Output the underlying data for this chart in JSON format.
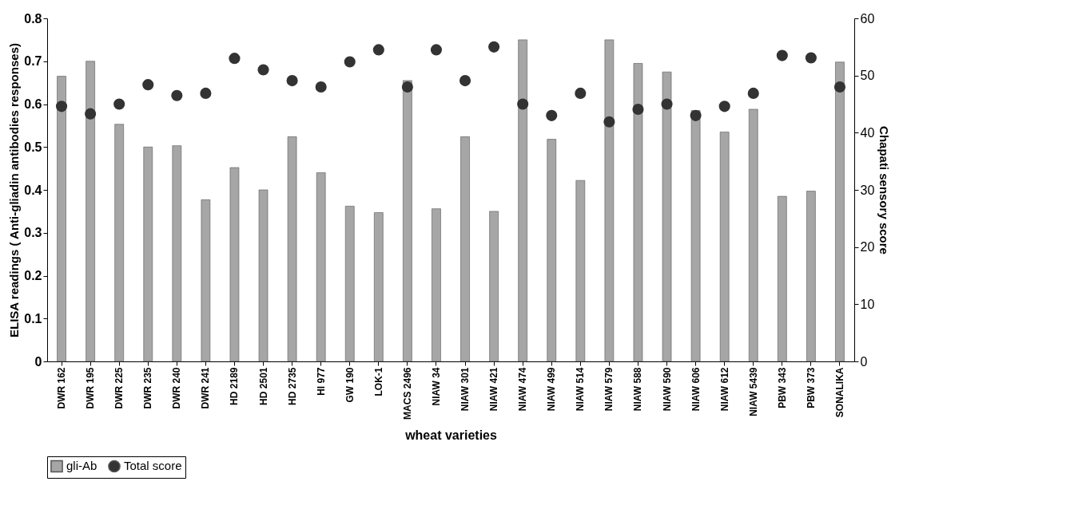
{
  "chart_data": {
    "type": "bar",
    "xlabel": "wheat varieties",
    "ylabel": "ELISA readings ( Anti-gliadin antibodies responses)",
    "y2label": "Chapati sensory score",
    "categories": [
      "DWR 162",
      "DWR 195",
      "DWR 225",
      "DWR 235",
      "DWR 240",
      "DWR 241",
      "HD 2189",
      "HD 2501",
      "HD 2735",
      "HI 977",
      "GW 190",
      "LOK-1",
      "MACS 2496",
      "NIAW 34",
      "NIAW 301",
      "NIAW 421",
      "NIAW 474",
      "NIAW 499",
      "NIAW 514",
      "NIAW 579",
      "NIAW 588",
      "NIAW 590",
      "NIAW 606",
      "NIAW 612",
      "NIAW 5439",
      "PBW 343",
      "PBW 373",
      "SONALIKA"
    ],
    "series": [
      {
        "name": "gli-Ab",
        "color": "#a6a6a6",
        "values": [
          0.665,
          0.7,
          0.553,
          0.5,
          0.503,
          0.377,
          0.452,
          0.4,
          0.524,
          0.44,
          0.362,
          0.347,
          0.655,
          0.356,
          0.524,
          0.35,
          0.75,
          0.518,
          0.422,
          0.75,
          0.695,
          0.675,
          0.585,
          0.535,
          0.588,
          0.385,
          0.397,
          0.698
        ]
      },
      {
        "name": "Total score",
        "type": "scatter",
        "axis": "y2",
        "color": "#333333",
        "marker": "circle",
        "values": [
          44.6,
          43.3,
          45,
          48.4,
          46.5,
          46.9,
          53,
          51,
          49.1,
          48,
          52.4,
          54.5,
          48,
          54.5,
          49.1,
          55,
          45,
          43,
          46.9,
          41.9,
          44.1,
          45,
          43,
          44.6,
          46.9,
          53.5,
          53.1,
          48
        ]
      }
    ],
    "ylim": [
      0,
      0.8
    ],
    "yticks": [
      0,
      0.1,
      0.2,
      0.3,
      0.4,
      0.5,
      0.6,
      0.7,
      0.8
    ],
    "y2lim": [
      0,
      60
    ],
    "y2ticks": [
      0,
      10,
      20,
      30,
      40,
      50,
      60
    ],
    "legend": "bottom",
    "grid": false
  }
}
